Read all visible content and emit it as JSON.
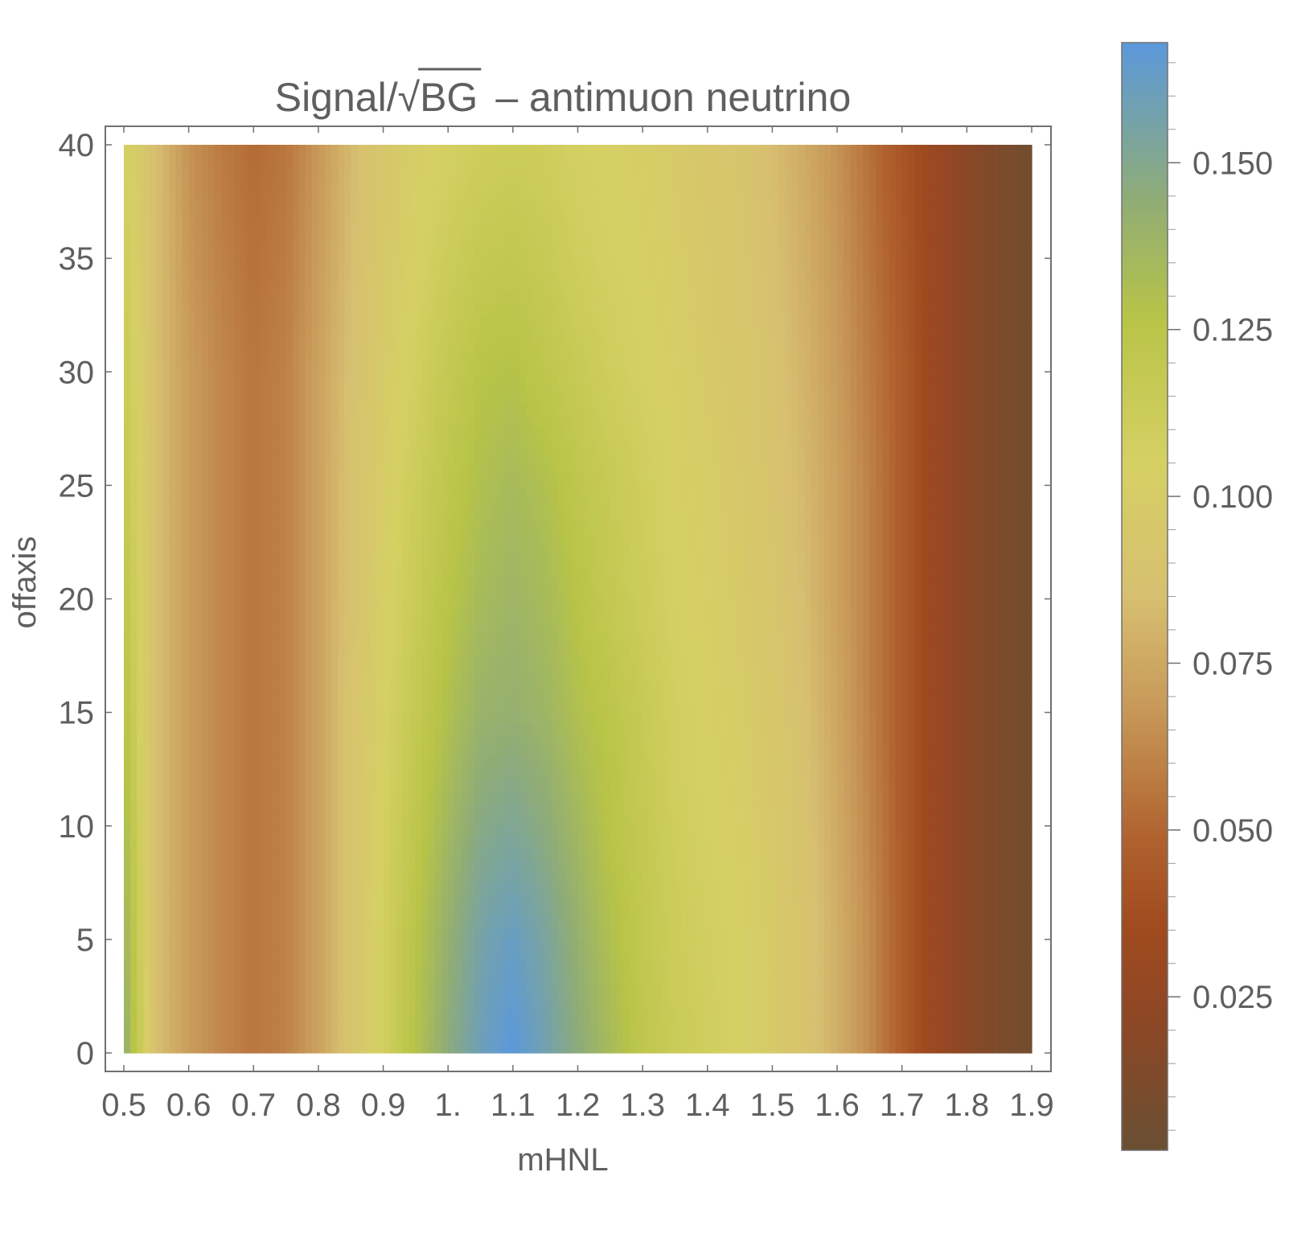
{
  "chart_data": {
    "type": "heatmap",
    "title_parts": {
      "prefix": "Signal/",
      "radicand": "BG",
      "suffix": "– antimuon neutrino"
    },
    "xlabel": "mHNL",
    "ylabel": "offaxis",
    "xlim": [
      0.5,
      1.9
    ],
    "ylim": [
      0,
      40
    ],
    "x_ticks": [
      "0.5",
      "0.6",
      "0.7",
      "0.8",
      "0.9",
      "1.",
      "1.1",
      "1.2",
      "1.3",
      "1.4",
      "1.5",
      "1.6",
      "1.7",
      "1.8",
      "1.9"
    ],
    "y_ticks": [
      "0",
      "5",
      "10",
      "15",
      "20",
      "25",
      "30",
      "35",
      "40"
    ],
    "colorbar": {
      "range": [
        0.002,
        0.168
      ],
      "ticks": [
        "0.025",
        "0.050",
        "0.075",
        "0.100",
        "0.125",
        "0.150"
      ],
      "stops": [
        {
          "v": 0.0,
          "color": "#6a4f33"
        },
        {
          "v": 0.12,
          "color": "#8e4725"
        },
        {
          "v": 0.2,
          "color": "#a04a1f"
        },
        {
          "v": 0.28,
          "color": "#b0612e"
        },
        {
          "v": 0.4,
          "color": "#c8995a"
        },
        {
          "v": 0.5,
          "color": "#d7bf70"
        },
        {
          "v": 0.62,
          "color": "#d6d064"
        },
        {
          "v": 0.75,
          "color": "#b8c447"
        },
        {
          "v": 0.86,
          "color": "#8fac77"
        },
        {
          "v": 1.0,
          "color": "#5b98dc"
        }
      ]
    },
    "x_grid": [
      0.5,
      0.55,
      0.6,
      0.65,
      0.7,
      0.75,
      0.8,
      0.85,
      0.9,
      0.95,
      1.0,
      1.05,
      1.1,
      1.15,
      1.2,
      1.25,
      1.3,
      1.35,
      1.4,
      1.45,
      1.5,
      1.55,
      1.6,
      1.65,
      1.7,
      1.75,
      1.8,
      1.85,
      1.9
    ],
    "y_grid": [
      0,
      5,
      10,
      15,
      20,
      25,
      30,
      35,
      40
    ],
    "z": [
      [
        0.145,
        0.085,
        0.07,
        0.062,
        0.056,
        0.06,
        0.072,
        0.09,
        0.108,
        0.128,
        0.146,
        0.16,
        0.168,
        0.158,
        0.146,
        0.134,
        0.122,
        0.114,
        0.11,
        0.104,
        0.098,
        0.09,
        0.078,
        0.064,
        0.046,
        0.03,
        0.02,
        0.012,
        0.006
      ],
      [
        0.14,
        0.085,
        0.07,
        0.062,
        0.056,
        0.06,
        0.072,
        0.09,
        0.108,
        0.126,
        0.142,
        0.156,
        0.162,
        0.154,
        0.142,
        0.13,
        0.12,
        0.112,
        0.108,
        0.104,
        0.098,
        0.09,
        0.078,
        0.064,
        0.046,
        0.03,
        0.02,
        0.012,
        0.006
      ],
      [
        0.134,
        0.085,
        0.07,
        0.062,
        0.056,
        0.06,
        0.072,
        0.09,
        0.106,
        0.122,
        0.136,
        0.148,
        0.152,
        0.146,
        0.136,
        0.126,
        0.118,
        0.11,
        0.106,
        0.102,
        0.096,
        0.088,
        0.076,
        0.062,
        0.046,
        0.03,
        0.02,
        0.012,
        0.006
      ],
      [
        0.128,
        0.085,
        0.07,
        0.062,
        0.056,
        0.06,
        0.072,
        0.09,
        0.104,
        0.118,
        0.13,
        0.14,
        0.142,
        0.138,
        0.13,
        0.124,
        0.116,
        0.108,
        0.104,
        0.1,
        0.094,
        0.086,
        0.074,
        0.06,
        0.046,
        0.03,
        0.02,
        0.012,
        0.006
      ],
      [
        0.124,
        0.085,
        0.07,
        0.062,
        0.056,
        0.06,
        0.072,
        0.088,
        0.102,
        0.114,
        0.126,
        0.134,
        0.138,
        0.134,
        0.126,
        0.118,
        0.112,
        0.106,
        0.102,
        0.098,
        0.092,
        0.084,
        0.072,
        0.06,
        0.046,
        0.03,
        0.02,
        0.012,
        0.006
      ],
      [
        0.12,
        0.085,
        0.07,
        0.062,
        0.056,
        0.06,
        0.072,
        0.088,
        0.1,
        0.112,
        0.122,
        0.13,
        0.134,
        0.13,
        0.122,
        0.116,
        0.11,
        0.104,
        0.1,
        0.096,
        0.09,
        0.082,
        0.072,
        0.06,
        0.046,
        0.03,
        0.02,
        0.012,
        0.006
      ],
      [
        0.116,
        0.085,
        0.07,
        0.062,
        0.056,
        0.06,
        0.072,
        0.086,
        0.098,
        0.108,
        0.118,
        0.126,
        0.128,
        0.122,
        0.116,
        0.11,
        0.106,
        0.102,
        0.098,
        0.094,
        0.088,
        0.08,
        0.07,
        0.058,
        0.046,
        0.03,
        0.02,
        0.012,
        0.006
      ],
      [
        0.112,
        0.085,
        0.068,
        0.06,
        0.054,
        0.058,
        0.07,
        0.084,
        0.096,
        0.104,
        0.112,
        0.118,
        0.12,
        0.116,
        0.11,
        0.106,
        0.104,
        0.1,
        0.096,
        0.092,
        0.086,
        0.078,
        0.068,
        0.056,
        0.044,
        0.03,
        0.02,
        0.012,
        0.006
      ],
      [
        0.108,
        0.085,
        0.066,
        0.058,
        0.052,
        0.056,
        0.068,
        0.082,
        0.094,
        0.102,
        0.106,
        0.11,
        0.112,
        0.11,
        0.106,
        0.104,
        0.102,
        0.098,
        0.094,
        0.09,
        0.084,
        0.076,
        0.066,
        0.054,
        0.042,
        0.03,
        0.02,
        0.012,
        0.006
      ]
    ]
  }
}
